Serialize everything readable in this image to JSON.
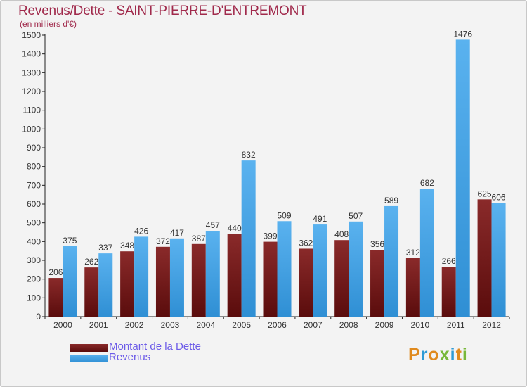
{
  "title": "Revenus/Dette - SAINT-PIERRE-D'ENTREMONT",
  "subtitle": "(en milliers d'€)",
  "colors": {
    "debt": "#7a1a1a",
    "revenue": "#4aa8e8",
    "title": "#a0294b",
    "legend_text": "#6d5ce8"
  },
  "legend": {
    "debt": "Montant de la Dette",
    "revenue": "Revenus"
  },
  "logo": {
    "text": "Proxiti",
    "letters": [
      "P",
      "r",
      "o",
      "x",
      "i",
      "t",
      "i"
    ],
    "colors": [
      "#e08a1e",
      "#2e9bd6",
      "#e08a1e",
      "#78b83a",
      "#2e9bd6",
      "#e08a1e",
      "#78b83a"
    ]
  },
  "chart_data": {
    "type": "bar",
    "title": "Revenus/Dette - SAINT-PIERRE-D'ENTREMONT",
    "ylabel": "(en milliers d'€)",
    "xlabel": "",
    "ylim": [
      0,
      1500
    ],
    "yticks": [
      0,
      100,
      200,
      300,
      400,
      500,
      600,
      700,
      800,
      900,
      1000,
      1100,
      1200,
      1300,
      1400,
      1500
    ],
    "grid": false,
    "legend_position": "bottom-left",
    "categories": [
      "2000",
      "2001",
      "2002",
      "2003",
      "2004",
      "2005",
      "2006",
      "2007",
      "2008",
      "2009",
      "2010",
      "2011",
      "2012"
    ],
    "series": [
      {
        "name": "Montant de la Dette",
        "values": [
          206,
          262,
          348,
          372,
          387,
          440,
          399,
          362,
          408,
          356,
          312,
          266,
          625
        ]
      },
      {
        "name": "Revenus",
        "values": [
          375,
          337,
          426,
          417,
          457,
          832,
          509,
          491,
          507,
          589,
          682,
          1476,
          606
        ]
      }
    ]
  }
}
